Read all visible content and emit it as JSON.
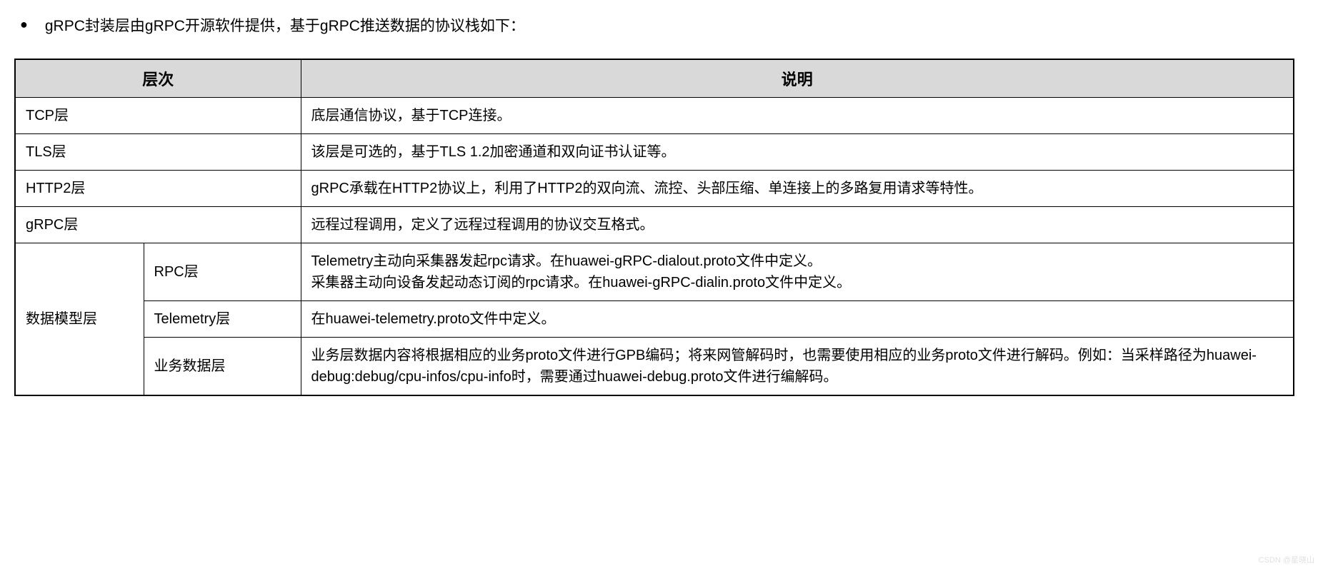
{
  "intro": {
    "text": "gRPC封装层由gRPC开源软件提供，基于gRPC推送数据的协议栈如下："
  },
  "table": {
    "headers": {
      "layer": "层次",
      "description": "说明"
    },
    "colors": {
      "header_bg": "#d9d9d9",
      "border": "#000000",
      "text": "#000000",
      "background": "#ffffff"
    },
    "rows": {
      "tcp": {
        "layer": "TCP层",
        "desc": "底层通信协议，基于TCP连接。"
      },
      "tls": {
        "layer": "TLS层",
        "desc": "该层是可选的，基于TLS 1.2加密通道和双向证书认证等。"
      },
      "http2": {
        "layer": "HTTP2层",
        "desc": "gRPC承载在HTTP2协议上，利用了HTTP2的双向流、流控、头部压缩、单连接上的多路复用请求等特性。"
      },
      "grpc": {
        "layer": "gRPC层",
        "desc": "远程过程调用，定义了远程过程调用的协议交互格式。"
      },
      "data_model": {
        "layer": "数据模型层",
        "sublayers": {
          "rpc": {
            "name": "RPC层",
            "desc": "Telemetry主动向采集器发起rpc请求。在huawei-gRPC-dialout.proto文件中定义。\n采集器主动向设备发起动态订阅的rpc请求。在huawei-gRPC-dialin.proto文件中定义。"
          },
          "telemetry": {
            "name": "Telemetry层",
            "desc": "在huawei-telemetry.proto文件中定义。"
          },
          "business": {
            "name": "业务数据层",
            "desc": "业务层数据内容将根据相应的业务proto文件进行GPB编码；将来网管解码时，也需要使用相应的业务proto文件进行解码。例如：当采样路径为huawei-debug:debug/cpu-infos/cpu-info时，需要通过huawei-debug.proto文件进行编解码。"
          }
        }
      }
    }
  },
  "watermark": "CSDN @星晓山"
}
